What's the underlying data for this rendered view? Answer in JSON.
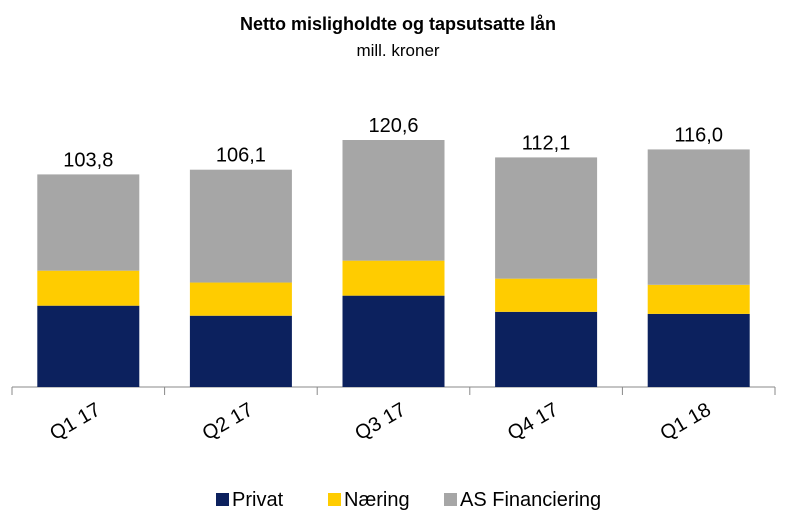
{
  "chart_data": {
    "type": "stacked_bar",
    "title": "Netto misligholdte og tapsutsatte lån",
    "subtitle": "mill. kroner",
    "categories": [
      "Q1 17",
      "Q2 17",
      "Q3 17",
      "Q4 17",
      "Q1 18"
    ],
    "series": [
      {
        "name": "Privat",
        "color": "#0c215e",
        "values": [
          39.7,
          34.8,
          44.6,
          36.7,
          35.7
        ]
      },
      {
        "name": "Næring",
        "color": "#ffcc00",
        "values": [
          17.1,
          16.2,
          17.1,
          16.2,
          14.2
        ]
      },
      {
        "name": "AS Financiering",
        "color": "#a6a6a6",
        "values": [
          47.0,
          55.1,
          58.9,
          59.2,
          66.1
        ]
      }
    ],
    "totals": [
      103.8,
      106.1,
      120.6,
      112.1,
      116.0
    ],
    "total_labels": [
      "103,8",
      "106,1",
      "120,6",
      "112,1",
      "116,0"
    ],
    "legend": "bottom"
  }
}
